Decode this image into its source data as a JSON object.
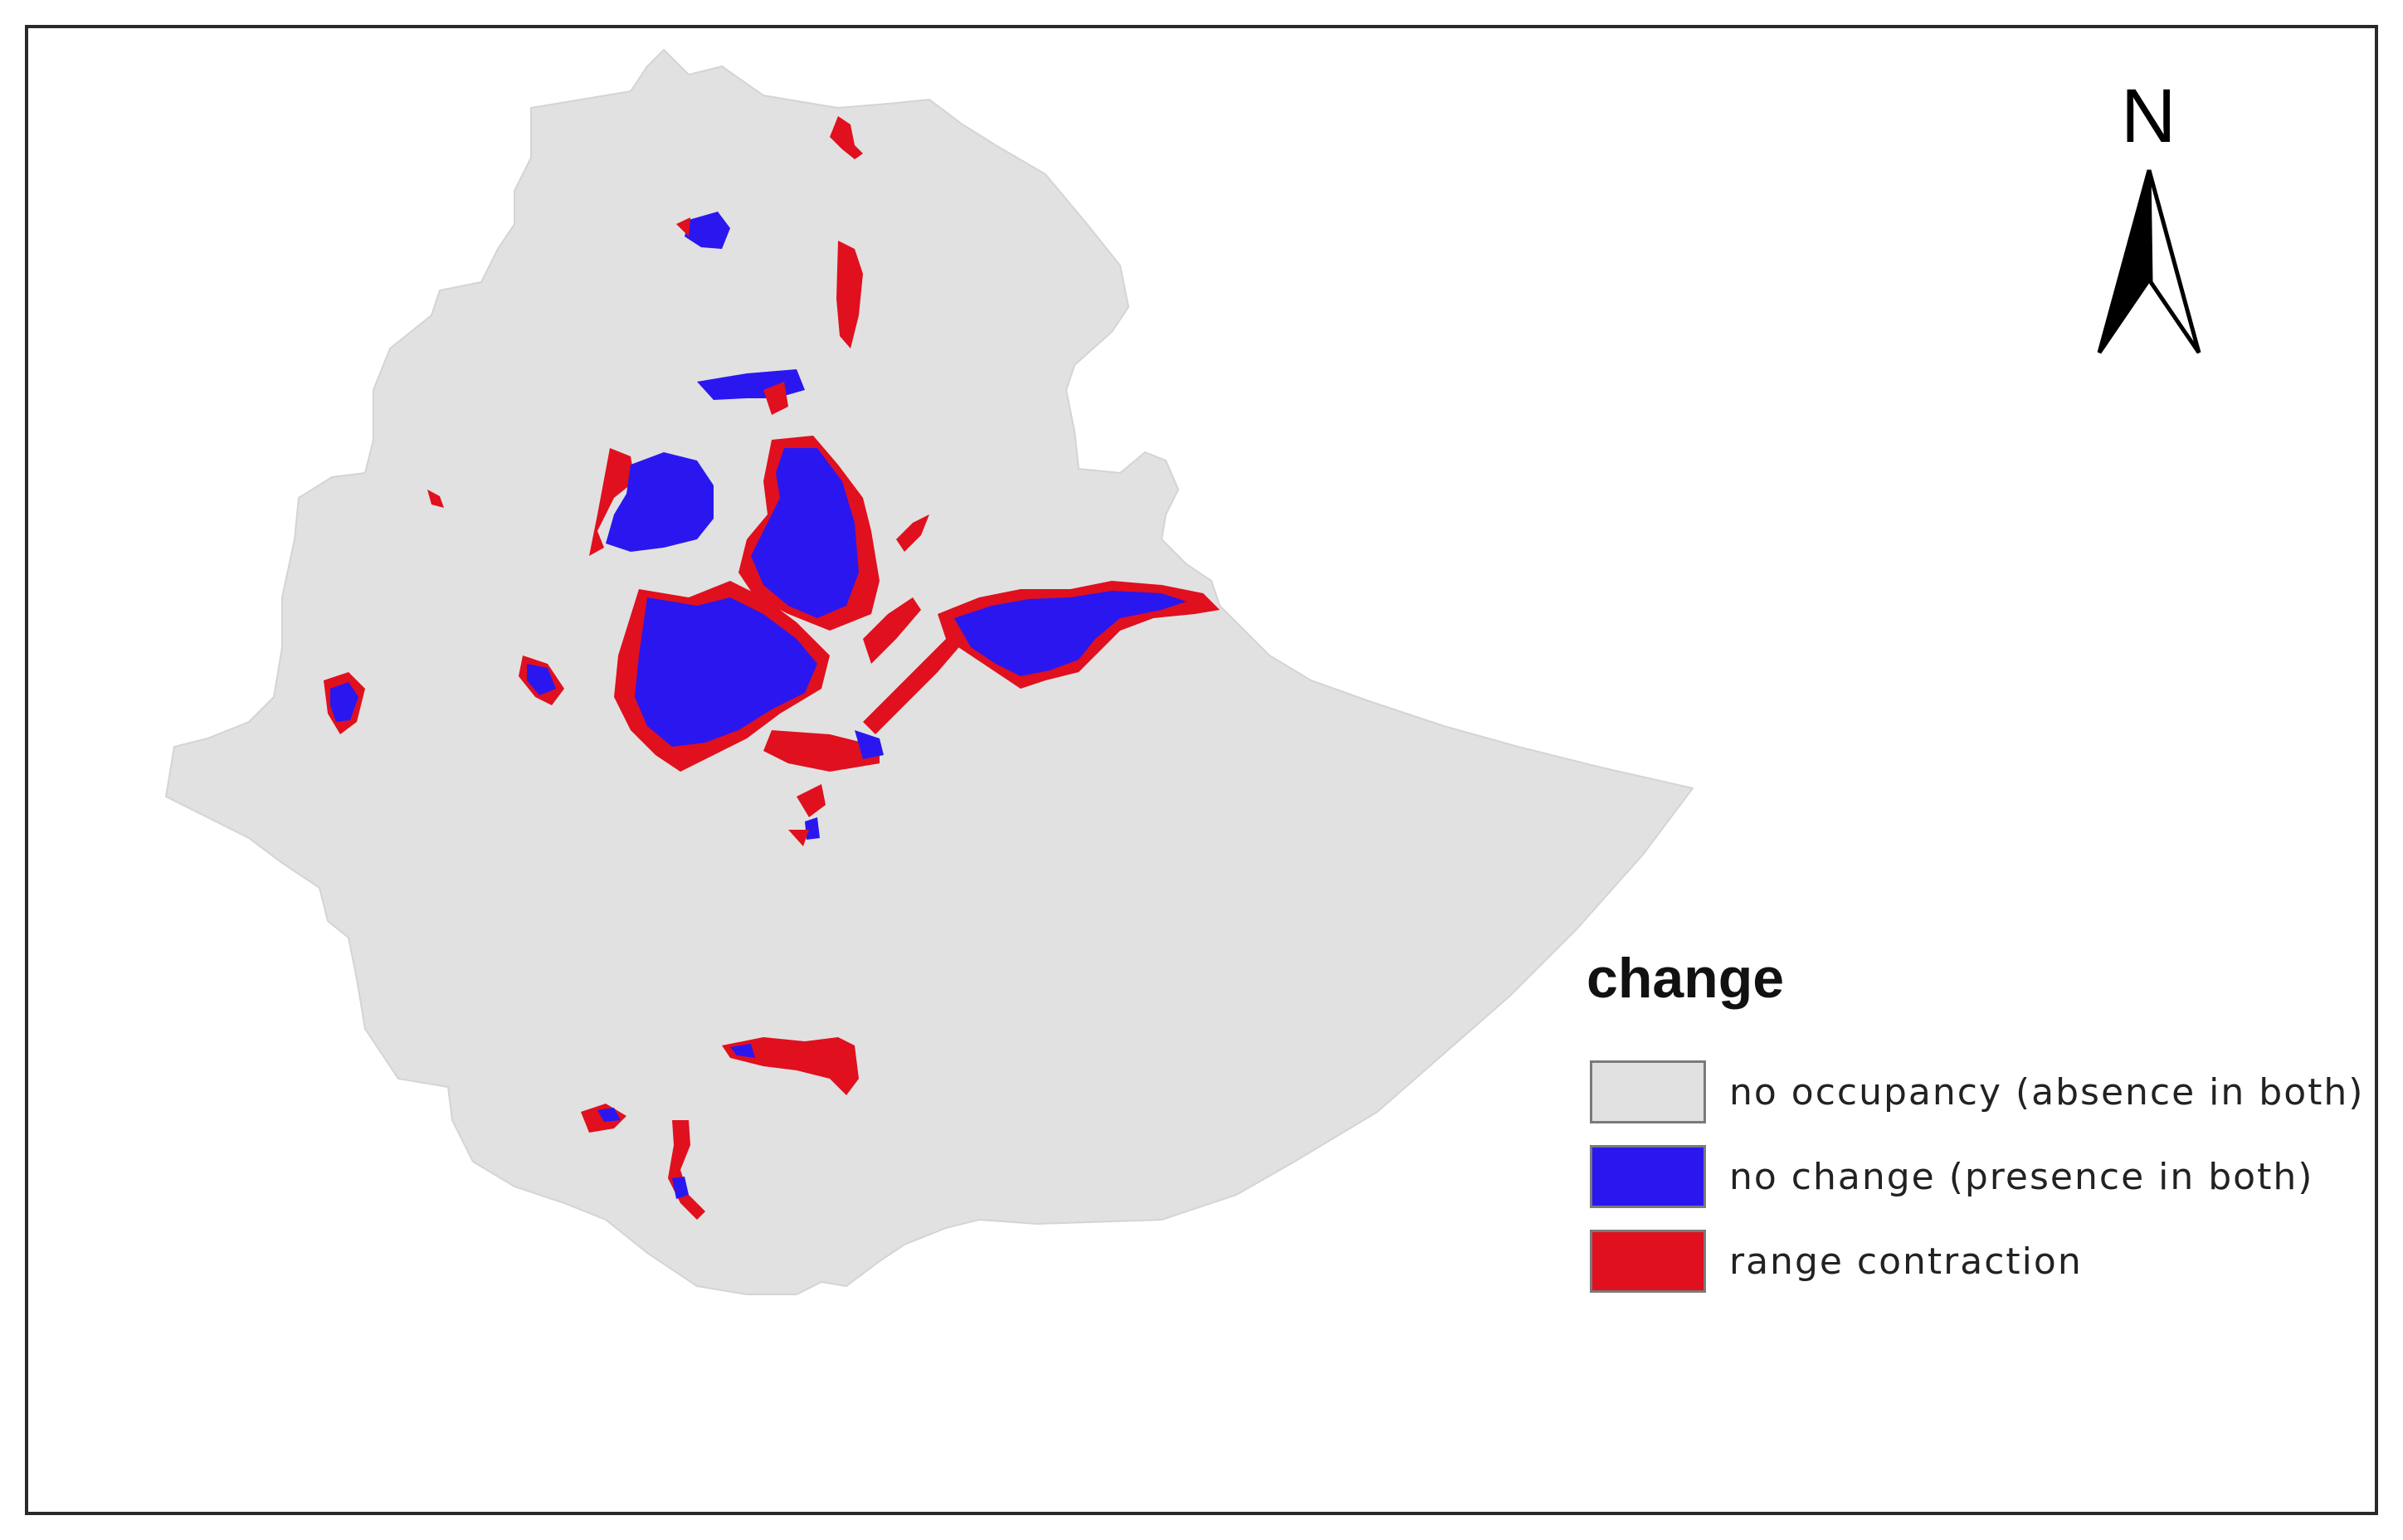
{
  "map": {
    "colors": {
      "background": "#e1e1e1",
      "no_change": "#2a17f0",
      "range_contraction": "#e0101e"
    },
    "north_arrow": {
      "label": "N",
      "icon": "north-arrow-icon"
    }
  },
  "legend": {
    "title": "change",
    "items": [
      {
        "label": "no occupancy (absence in both)",
        "color": "#e1e1e1"
      },
      {
        "label": "no change (presence in both)",
        "color": "#2a17f0"
      },
      {
        "label": "range contraction",
        "color": "#e0101e"
      }
    ]
  }
}
